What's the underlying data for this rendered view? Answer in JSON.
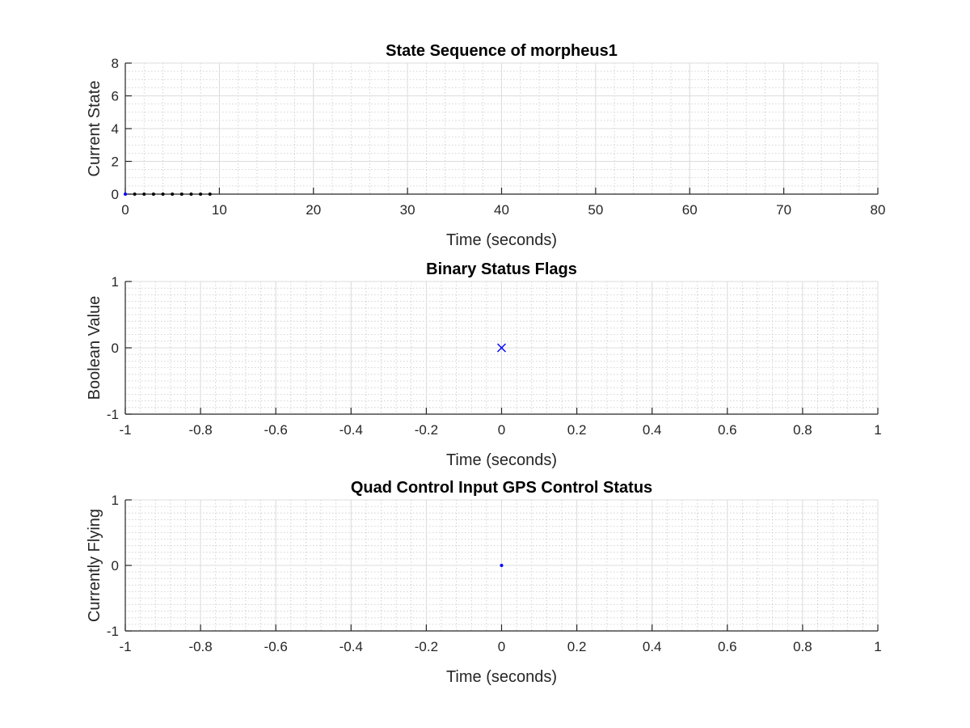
{
  "chart_data": [
    {
      "type": "scatter",
      "title": "State Sequence of morpheus1",
      "xlabel": "Time (seconds)",
      "ylabel": "Current State",
      "xlim": [
        0,
        80
      ],
      "ylim": [
        0,
        8
      ],
      "xticks": [
        0,
        10,
        20,
        30,
        40,
        50,
        60,
        70,
        80
      ],
      "xtick_labels": [
        "0",
        "10",
        "20",
        "30",
        "40",
        "50",
        "60",
        "70",
        "80"
      ],
      "yticks": [
        0,
        2,
        4,
        6,
        8
      ],
      "ytick_labels": [
        "0",
        "2",
        "4",
        "6",
        "8"
      ],
      "x_minor_step": 2,
      "y_minor_step": 0.5,
      "grid": true,
      "series": [
        {
          "marker": "dot",
          "color": "#000000",
          "x": [
            1,
            2,
            3,
            4,
            5,
            6,
            7,
            8,
            9
          ],
          "y": [
            0,
            0,
            0,
            0,
            0,
            0,
            0,
            0,
            0
          ]
        },
        {
          "marker": "dot",
          "color": "#0000ff",
          "x": [
            0
          ],
          "y": [
            0
          ]
        }
      ]
    },
    {
      "type": "scatter",
      "title": "Binary Status Flags",
      "xlabel": "Time (seconds)",
      "ylabel": "Boolean Value",
      "xlim": [
        -1,
        1
      ],
      "ylim": [
        -1,
        1
      ],
      "xticks": [
        -1,
        -0.8,
        -0.6,
        -0.4,
        -0.2,
        0,
        0.2,
        0.4,
        0.6,
        0.8,
        1
      ],
      "xtick_labels": [
        "-1",
        "-0.8",
        "-0.6",
        "-0.4",
        "-0.2",
        "0",
        "0.2",
        "0.4",
        "0.6",
        "0.8",
        "1"
      ],
      "yticks": [
        -1,
        0,
        1
      ],
      "ytick_labels": [
        "-1",
        "0",
        "1"
      ],
      "x_minor_step": 0.04,
      "y_minor_step": 0.1,
      "grid": true,
      "series": [
        {
          "marker": "x",
          "color": "#0000ff",
          "x": [
            0
          ],
          "y": [
            0
          ]
        }
      ]
    },
    {
      "type": "scatter",
      "title": "Quad Control Input GPS Control Status",
      "xlabel": "Time (seconds)",
      "ylabel": "Currently Flying",
      "xlim": [
        -1,
        1
      ],
      "ylim": [
        -1,
        1
      ],
      "xticks": [
        -1,
        -0.8,
        -0.6,
        -0.4,
        -0.2,
        0,
        0.2,
        0.4,
        0.6,
        0.8,
        1
      ],
      "xtick_labels": [
        "-1",
        "-0.8",
        "-0.6",
        "-0.4",
        "-0.2",
        "0",
        "0.2",
        "0.4",
        "0.6",
        "0.8",
        "1"
      ],
      "yticks": [
        -1,
        0,
        1
      ],
      "ytick_labels": [
        "-1",
        "0",
        "1"
      ],
      "x_minor_step": 0.04,
      "y_minor_step": 0.1,
      "grid": true,
      "series": [
        {
          "marker": "dot",
          "color": "#0000ff",
          "x": [
            0
          ],
          "y": [
            0
          ]
        }
      ]
    }
  ]
}
